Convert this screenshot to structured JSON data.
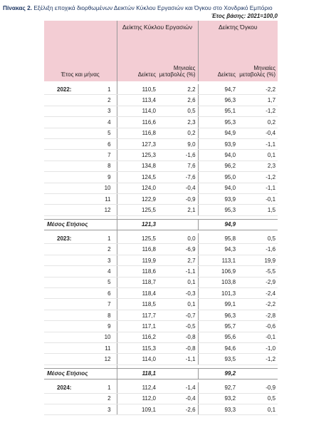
{
  "header": {
    "label": "Πίνακας 2.",
    "title": "Εξέλιξη εποχικά διορθωμένων Δεικτών Κύκλου Εργασιών και Όγκου στο Χονδρικό Εμπόριο",
    "base": "Έτος βάσης: 2021=100,0"
  },
  "table": {
    "columns": {
      "period": "Έτος και μήνας",
      "turnover": "Δείκτης Κύκλου Εργασιών",
      "volume": "Δείκτης Όγκου",
      "index1": "Δείκτες",
      "change1": "Μηνιαίες μεταβολές (%)",
      "index2": "Δείκτες",
      "change2": "Μηνιαίες μεταβολές (%)"
    },
    "sections": [
      {
        "year": "2022:",
        "rows": [
          [
            "1",
            "110,5",
            "2,2",
            "94,7",
            "-2,2"
          ],
          [
            "2",
            "113,4",
            "2,6",
            "96,3",
            "1,7"
          ],
          [
            "3",
            "114,0",
            "0,5",
            "95,1",
            "-1,2"
          ],
          [
            "4",
            "116,6",
            "2,3",
            "95,3",
            "0,2"
          ],
          [
            "5",
            "116,8",
            "0,2",
            "94,9",
            "-0,4"
          ],
          [
            "6",
            "127,3",
            "9,0",
            "93,9",
            "-1,1"
          ],
          [
            "7",
            "125,3",
            "-1,6",
            "94,0",
            "0,1"
          ],
          [
            "8",
            "134,8",
            "7,6",
            "96,2",
            "2,3"
          ],
          [
            "9",
            "124,5",
            "-7,6",
            "95,0",
            "-1,2"
          ],
          [
            "10",
            "124,0",
            "-0,4",
            "94,0",
            "-1,1"
          ],
          [
            "11",
            "122,9",
            "-0,9",
            "93,9",
            "-0,1"
          ],
          [
            "12",
            "125,5",
            "2,1",
            "95,3",
            "1,5"
          ]
        ],
        "average_label": "Μέσος Ετήσιος",
        "average": [
          "121,3",
          "94,9"
        ]
      },
      {
        "year": "2023:",
        "rows": [
          [
            "1",
            "125,5",
            "0,0",
            "95,8",
            "0,5"
          ],
          [
            "2",
            "116,8",
            "-6,9",
            "94,3",
            "-1,6"
          ],
          [
            "3",
            "119,9",
            "2,7",
            "113,1",
            "19,9"
          ],
          [
            "4",
            "118,6",
            "-1,1",
            "106,9",
            "-5,5"
          ],
          [
            "5",
            "118,7",
            "0,1",
            "103,8",
            "-2,9"
          ],
          [
            "6",
            "118,4",
            "-0,3",
            "101,3",
            "-2,4"
          ],
          [
            "7",
            "118,5",
            "0,1",
            "99,1",
            "-2,2"
          ],
          [
            "8",
            "117,7",
            "-0,7",
            "96,3",
            "-2,8"
          ],
          [
            "9",
            "117,1",
            "-0,5",
            "95,7",
            "-0,6"
          ],
          [
            "10",
            "116,2",
            "-0,8",
            "95,6",
            "-0,1"
          ],
          [
            "11",
            "115,3",
            "-0,8",
            "94,6",
            "-1,0"
          ],
          [
            "12",
            "114,0",
            "-1,1",
            "93,5",
            "-1,2"
          ]
        ],
        "average_label": "Μέσος Ετήσιος",
        "average": [
          "118,1",
          "99,2"
        ]
      },
      {
        "year": "2024:",
        "rows": [
          [
            "1",
            "112,4",
            "-1,4",
            "92,7",
            "-0,9"
          ],
          [
            "2",
            "112,0",
            "-0,4",
            "93,2",
            "0,5"
          ],
          [
            "3",
            "109,1",
            "-2,6",
            "93,3",
            "0,1"
          ]
        ]
      }
    ]
  }
}
